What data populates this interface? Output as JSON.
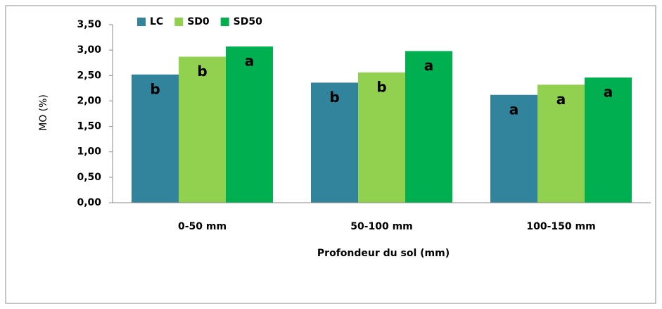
{
  "chart_data": {
    "type": "bar",
    "x_label": "Profondeur du sol (mm)",
    "y_label": "MO (%)",
    "categories": [
      "0-50 mm",
      "50-100 mm",
      "100-150 mm"
    ],
    "series": [
      {
        "name": "LC",
        "color": "#31849b",
        "values": [
          2.52,
          2.36,
          2.12
        ],
        "letters": [
          "b",
          "b",
          "a"
        ]
      },
      {
        "name": "SD0",
        "color": "#92d050",
        "values": [
          2.87,
          2.56,
          2.32
        ],
        "letters": [
          "b",
          "b",
          "a"
        ]
      },
      {
        "name": "SD50",
        "color": "#00b050",
        "values": [
          3.07,
          2.98,
          2.46
        ],
        "letters": [
          "a",
          "a",
          "a"
        ]
      }
    ],
    "ylim": [
      0,
      3.5
    ],
    "yticks": [
      {
        "value": 0,
        "label": "0,00"
      },
      {
        "value": 0.5,
        "label": "0,50"
      },
      {
        "value": 1,
        "label": "1,00"
      },
      {
        "value": 1.5,
        "label": "1,50"
      },
      {
        "value": 2,
        "label": "2,00"
      },
      {
        "value": 2.5,
        "label": "2,50"
      },
      {
        "value": 3,
        "label": "3,00"
      },
      {
        "value": 3.5,
        "label": "3,50"
      }
    ],
    "legend": "top-left"
  }
}
